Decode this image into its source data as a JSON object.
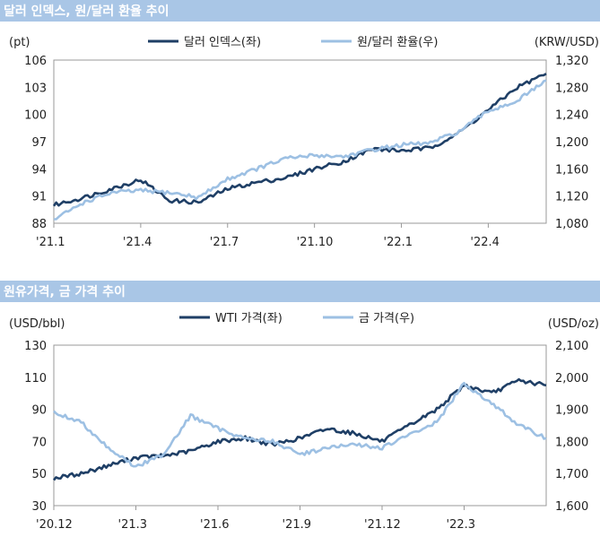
{
  "sections": [
    {
      "title": "달러 인덱스, 원/달러 환율 추이"
    },
    {
      "title": "원유가격, 금 가격 추이"
    }
  ],
  "chart_data": [
    {
      "type": "line",
      "title": "달러 인덱스, 원/달러 환율 추이",
      "left_unit": "(pt)",
      "right_unit": "(KRW/USD)",
      "ylim_left": [
        88,
        106
      ],
      "yticks_left": [
        "106",
        "103",
        "100",
        "97",
        "94",
        "91",
        "88"
      ],
      "ylim_right": [
        1080,
        1320
      ],
      "yticks_right": [
        "1,320",
        "1,280",
        "1,240",
        "1,200",
        "1,160",
        "1,120",
        "1,080"
      ],
      "xticks": [
        "'21.1",
        "'21.4",
        "'21.7",
        "'21.10",
        "'22.1",
        "'22.4"
      ],
      "xtick_index": [
        0,
        3,
        6,
        9,
        12,
        15
      ],
      "x_months": [
        "21.1",
        "21.2",
        "21.3",
        "21.4",
        "21.5",
        "21.6",
        "21.7",
        "21.8",
        "21.9",
        "21.10",
        "21.11",
        "21.12",
        "22.1",
        "22.2",
        "22.3",
        "22.4",
        "22.5",
        "22.6"
      ],
      "legend_position": "top-center",
      "series": [
        {
          "name": "달러 인덱스(좌)",
          "axis": "left",
          "color": "#1f3f66",
          "values": [
            90.0,
            90.8,
            91.8,
            92.8,
            90.5,
            90.3,
            91.8,
            92.5,
            93.0,
            94.0,
            94.8,
            96.2,
            96.0,
            96.3,
            98.0,
            100.5,
            103.0,
            104.5
          ]
        },
        {
          "name": "원/달러 환율(우)",
          "axis": "right",
          "color": "#9dc0e3",
          "values": [
            1085,
            1110,
            1125,
            1128,
            1125,
            1118,
            1145,
            1160,
            1175,
            1180,
            1178,
            1188,
            1195,
            1198,
            1215,
            1245,
            1260,
            1290
          ]
        }
      ]
    },
    {
      "type": "line",
      "title": "원유가격, 금 가격 추이",
      "left_unit": "(USD/bbl)",
      "right_unit": "(USD/oz)",
      "ylim_left": [
        30,
        130
      ],
      "yticks_left": [
        "130",
        "110",
        "90",
        "70",
        "50",
        "30"
      ],
      "ylim_right": [
        1600,
        2100
      ],
      "yticks_right": [
        "2,100",
        "2,000",
        "1,900",
        "1,800",
        "1,700",
        "1,600"
      ],
      "xticks": [
        "'20.12",
        "'21.3",
        "'21.6",
        "'21.9",
        "'21.12",
        "'22.3"
      ],
      "xtick_index": [
        0,
        3,
        6,
        9,
        12,
        15
      ],
      "x_months": [
        "20.12",
        "21.1",
        "21.2",
        "21.3",
        "21.4",
        "21.5",
        "21.6",
        "21.7",
        "21.8",
        "21.9",
        "21.10",
        "21.11",
        "21.12",
        "22.1",
        "22.2",
        "22.3",
        "22.4",
        "22.5",
        "22.6"
      ],
      "legend_position": "top-center",
      "series": [
        {
          "name": "WTI 가격(좌)",
          "axis": "left",
          "color": "#1f3f66",
          "values": [
            47,
            50,
            55,
            60,
            61,
            64,
            70,
            72,
            68,
            72,
            78,
            75,
            70,
            80,
            90,
            105,
            100,
            108,
            105
          ]
        },
        {
          "name": "금 가격(우)",
          "axis": "right",
          "color": "#9dc0e3",
          "values": [
            1890,
            1860,
            1780,
            1720,
            1760,
            1880,
            1840,
            1810,
            1800,
            1760,
            1780,
            1790,
            1780,
            1820,
            1860,
            1980,
            1920,
            1850,
            1810
          ]
        }
      ]
    }
  ]
}
